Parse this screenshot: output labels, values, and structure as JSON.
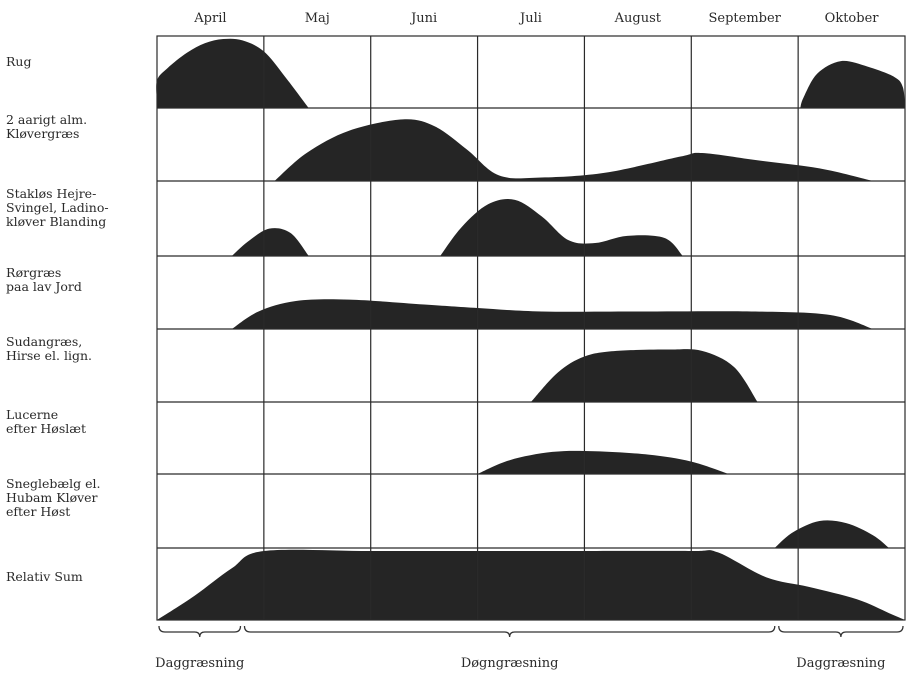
{
  "chart_data": {
    "type": "area",
    "title": "",
    "xlabel": "",
    "ylabel": "",
    "months": [
      "April",
      "Maj",
      "Juni",
      "Juli",
      "August",
      "September",
      "Oktober"
    ],
    "note": "",
    "series": [
      {
        "name": "Rug",
        "label_lines": [
          "Rug"
        ],
        "points": [
          [
            0.0,
            0.1
          ],
          [
            0.0,
            0.4
          ],
          [
            0.1,
            0.58
          ],
          [
            0.28,
            0.8
          ],
          [
            0.45,
            0.94
          ],
          [
            0.62,
            1.0
          ],
          [
            0.8,
            0.98
          ],
          [
            1.0,
            0.82
          ],
          [
            1.2,
            0.45
          ],
          [
            1.42,
            0.0
          ]
        ],
        "points2": [
          [
            6.02,
            0.0
          ],
          [
            6.05,
            0.15
          ],
          [
            6.18,
            0.5
          ],
          [
            6.4,
            0.68
          ],
          [
            6.65,
            0.6
          ],
          [
            6.9,
            0.45
          ],
          [
            6.98,
            0.3
          ],
          [
            7.0,
            0.0
          ]
        ]
      },
      {
        "name": "2 aarigt alm. Kløvergræs",
        "label_lines": [
          "2 aarigt alm.",
          "Kløvergræs"
        ],
        "points": [
          [
            1.1,
            0.0
          ],
          [
            1.4,
            0.4
          ],
          [
            1.8,
            0.72
          ],
          [
            2.3,
            0.88
          ],
          [
            2.6,
            0.78
          ],
          [
            2.9,
            0.45
          ],
          [
            3.2,
            0.08
          ],
          [
            3.6,
            0.05
          ],
          [
            4.2,
            0.12
          ],
          [
            4.9,
            0.35
          ],
          [
            5.1,
            0.4
          ],
          [
            5.6,
            0.3
          ],
          [
            6.2,
            0.18
          ],
          [
            6.7,
            0.0
          ]
        ]
      },
      {
        "name": "Stakløs Hejre-Svingel, Ladinokløver Blanding",
        "label_lines": [
          "Stakløs  Hejre-",
          "Svingel, Ladino-",
          "kløver Blanding"
        ],
        "points": [
          [
            0.7,
            0.0
          ],
          [
            0.85,
            0.2
          ],
          [
            1.05,
            0.38
          ],
          [
            1.25,
            0.32
          ],
          [
            1.42,
            0.0
          ]
        ],
        "points2": [
          [
            2.65,
            0.0
          ],
          [
            2.85,
            0.4
          ],
          [
            3.1,
            0.72
          ],
          [
            3.35,
            0.78
          ],
          [
            3.6,
            0.55
          ],
          [
            3.85,
            0.22
          ],
          [
            4.1,
            0.18
          ],
          [
            4.4,
            0.28
          ],
          [
            4.75,
            0.25
          ],
          [
            4.92,
            0.0
          ]
        ]
      },
      {
        "name": "Rørgræs paa lav Jord",
        "label_lines": [
          "Rørgræs",
          "paa lav Jord"
        ],
        "points": [
          [
            0.7,
            0.0
          ],
          [
            0.95,
            0.25
          ],
          [
            1.3,
            0.4
          ],
          [
            1.8,
            0.42
          ],
          [
            2.5,
            0.35
          ],
          [
            3.0,
            0.3
          ],
          [
            3.6,
            0.25
          ],
          [
            4.5,
            0.25
          ],
          [
            5.6,
            0.25
          ],
          [
            6.3,
            0.2
          ],
          [
            6.7,
            0.0
          ]
        ]
      },
      {
        "name": "Sudangræs, Hirse el. lign.",
        "label_lines": [
          "Sudangræs,",
          "Hirse el. lign."
        ],
        "points": [
          [
            3.5,
            0.0
          ],
          [
            3.75,
            0.42
          ],
          [
            4.0,
            0.65
          ],
          [
            4.3,
            0.73
          ],
          [
            4.8,
            0.75
          ],
          [
            5.1,
            0.73
          ],
          [
            5.4,
            0.5
          ],
          [
            5.62,
            0.0
          ]
        ]
      },
      {
        "name": "Lucerne efter Høslæt",
        "label_lines": [
          "Lucerne",
          "efter Høslæt"
        ],
        "points": [
          [
            3.0,
            0.0
          ],
          [
            3.3,
            0.2
          ],
          [
            3.7,
            0.32
          ],
          [
            4.1,
            0.33
          ],
          [
            4.6,
            0.28
          ],
          [
            5.0,
            0.18
          ],
          [
            5.35,
            0.0
          ]
        ]
      },
      {
        "name": "Sneglebælg el. Hubam Kløver efter Høst",
        "label_lines": [
          "Sneglebælg el.",
          "Hubam Kløver",
          "efter Høst"
        ],
        "points": [
          [
            5.78,
            0.0
          ],
          [
            5.95,
            0.22
          ],
          [
            6.2,
            0.38
          ],
          [
            6.45,
            0.35
          ],
          [
            6.7,
            0.18
          ],
          [
            6.85,
            0.0
          ]
        ]
      },
      {
        "name": "Relativ Sum",
        "label_lines": [
          "Relativ Sum"
        ],
        "points": [
          [
            0.0,
            0.0
          ],
          [
            0.35,
            0.35
          ],
          [
            0.7,
            0.75
          ],
          [
            1.0,
            1.0
          ],
          [
            2.0,
            1.0
          ],
          [
            3.0,
            1.0
          ],
          [
            4.0,
            1.0
          ],
          [
            5.0,
            1.0
          ],
          [
            5.25,
            0.98
          ],
          [
            5.7,
            0.62
          ],
          [
            6.1,
            0.48
          ],
          [
            6.55,
            0.3
          ],
          [
            6.85,
            0.1
          ],
          [
            7.0,
            0.0
          ]
        ]
      }
    ],
    "brackets": [
      {
        "label": "Daggræsning",
        "from": 0.0,
        "to": 0.8
      },
      {
        "label": "Døgngræsning",
        "from": 0.8,
        "to": 5.8
      },
      {
        "label": "Daggræsning",
        "from": 5.8,
        "to": 7.0
      }
    ],
    "grid": true
  }
}
